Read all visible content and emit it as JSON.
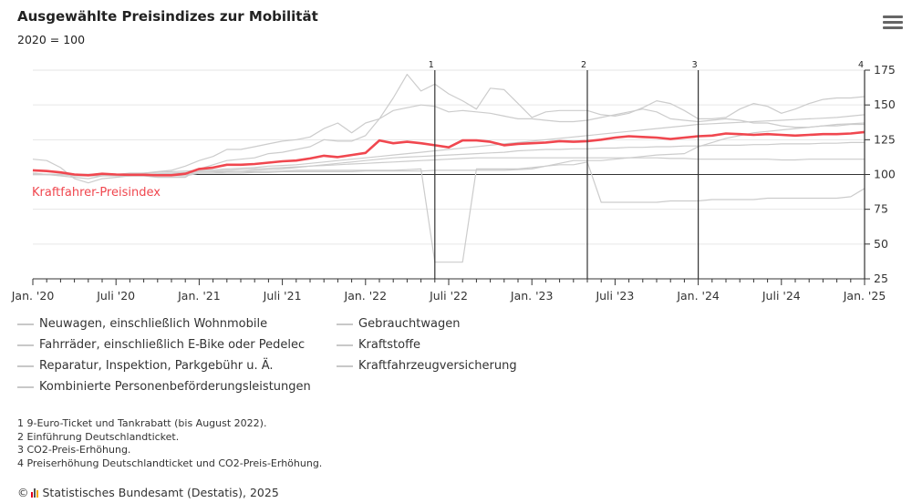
{
  "header": {
    "title": "Ausgewählte Preisindizes zur Mobilität",
    "subtitle": "2020 = 100"
  },
  "menu": {
    "icon": "hamburger-menu-icon"
  },
  "chart_data": {
    "type": "line",
    "ylim": [
      25,
      175
    ],
    "yticks": [
      "25",
      "50",
      "75",
      "100",
      "125",
      "150",
      "175"
    ],
    "xticks": [
      "Jan. '20",
      "Juli '20",
      "Jan. '21",
      "Juli '21",
      "Jan. '22",
      "Juli '22",
      "Jan. '23",
      "Juli '23",
      "Jan. '24",
      "Juli '24",
      "Jan. '25"
    ],
    "highlight_label": "Kraftfahrer-Preisindex",
    "highlight_color": "#f0474f",
    "other_color": "#cccccc",
    "markers": [
      {
        "label": "1",
        "month": 29
      },
      {
        "label": "2",
        "month": 40
      },
      {
        "label": "3",
        "month": 48
      },
      {
        "label": "4",
        "month": 60
      }
    ],
    "series": [
      {
        "name": "Kraftfahrer-Preisindex",
        "highlight": true,
        "values": [
          103,
          102.5,
          101.5,
          100,
          99.5,
          100.5,
          100,
          99.8,
          99.8,
          99.5,
          99.5,
          100.5,
          104,
          105,
          107,
          107,
          107.5,
          108.5,
          109.5,
          110,
          111.5,
          113.5,
          112.5,
          114,
          115.5,
          124.5,
          122.5,
          123.5,
          122.5,
          121,
          119.5,
          124.5,
          124.5,
          123.5,
          121,
          122,
          122.5,
          123,
          124,
          123.5,
          124,
          125,
          126.5,
          127.5,
          127,
          126.5,
          125.5,
          126.5,
          127.5,
          128,
          129.5,
          129,
          128.5,
          129,
          128.5,
          128,
          128.5,
          129,
          129,
          129.5,
          130.5
        ]
      },
      {
        "name": "Neuwagen, einschließlich Wohnmobile",
        "values": [
          100,
          100,
          100,
          100,
          100,
          100,
          99,
          99,
          99,
          99,
          99,
          99,
          101,
          101,
          102,
          102,
          103,
          103.5,
          104,
          105,
          106,
          107,
          108,
          109,
          110,
          111,
          112,
          112.5,
          113,
          113.5,
          114,
          114.5,
          115,
          115.5,
          116,
          117,
          117.5,
          118,
          118,
          118.5,
          118.5,
          119,
          119,
          119.5,
          119.5,
          120,
          120,
          120.5,
          120.5,
          121,
          121,
          121,
          121.5,
          121.5,
          122,
          122,
          122,
          122.5,
          122.5,
          123,
          123
        ]
      },
      {
        "name": "Gebrauchtwagen",
        "values": [
          101,
          100,
          99,
          98,
          97,
          99,
          100,
          101,
          101,
          102,
          103,
          106,
          110,
          113,
          118,
          118,
          120,
          122,
          124,
          125,
          127,
          133,
          137,
          130,
          137,
          140,
          146,
          148,
          150,
          149,
          145,
          146,
          145,
          144,
          142,
          140,
          140,
          139,
          138,
          138,
          139,
          141,
          143,
          145,
          147,
          145,
          140,
          139,
          138,
          139,
          140,
          139,
          137,
          137,
          135,
          134,
          134,
          135,
          135,
          136,
          136
        ]
      },
      {
        "name": "Fahrräder, einschließlich E-Bike oder Pedelec",
        "values": [
          100,
          100,
          100,
          100,
          100,
          100,
          100,
          100,
          100,
          100.5,
          101,
          101.5,
          102,
          102.5,
          103,
          103.5,
          104,
          104.5,
          105,
          105.5,
          106,
          106.5,
          107,
          107.5,
          108,
          108.5,
          109,
          109.5,
          110,
          110.5,
          111,
          111.5,
          112,
          112,
          112,
          112,
          112,
          112,
          112,
          112,
          112,
          112,
          112,
          112,
          112,
          112,
          111.5,
          111.5,
          111,
          111,
          111,
          111,
          111,
          111,
          110.5,
          110.5,
          111,
          111,
          111,
          111,
          111
        ]
      },
      {
        "name": "Kraftstoffe",
        "values": [
          111,
          110,
          105,
          97,
          94,
          97,
          98,
          99,
          99,
          98,
          98,
          98,
          104,
          107,
          110,
          111,
          112,
          115,
          116,
          118,
          120,
          125,
          124,
          124,
          128,
          140,
          155,
          172,
          160,
          165,
          158,
          153,
          147,
          162,
          161,
          151,
          141,
          145,
          146,
          146,
          146,
          143,
          142,
          144,
          148,
          153,
          151,
          146,
          140,
          140,
          141,
          147,
          151,
          149,
          144,
          147,
          151,
          154,
          155,
          155,
          156
        ]
      },
      {
        "name": "Reparatur, Inspektion, Parkgebühr u. Ä.",
        "values": [
          100,
          100,
          100,
          100,
          100,
          100,
          100,
          100.5,
          101,
          101.5,
          102,
          102.5,
          103,
          103.5,
          104,
          104.5,
          105,
          106,
          106.5,
          107,
          108,
          109,
          110,
          111,
          112,
          113,
          114,
          115,
          116,
          117,
          118,
          119,
          120,
          121,
          122,
          123,
          124,
          125,
          126,
          127,
          128,
          129,
          130,
          131,
          132,
          133,
          134,
          135,
          136,
          136.5,
          137,
          137.5,
          138,
          138.5,
          139,
          139.5,
          140,
          140.5,
          141,
          142,
          143
        ]
      },
      {
        "name": "Kraftfahrzeugversicherung",
        "values": [
          100,
          100,
          100,
          100,
          100,
          100,
          100,
          100,
          100,
          100,
          100,
          100,
          101,
          101,
          101,
          101,
          101.5,
          101.5,
          102,
          102,
          102,
          102,
          102,
          102,
          102.5,
          102.5,
          102.5,
          102.5,
          102.5,
          103,
          103,
          103,
          103,
          103,
          103,
          103.5,
          104,
          106,
          108,
          110,
          110,
          110,
          111,
          112,
          113,
          114,
          114.5,
          115,
          120,
          123,
          126,
          128,
          130,
          131,
          132,
          133,
          134,
          135,
          136,
          136.5,
          137
        ]
      },
      {
        "name": "Kombinierte Personenbeförderungsleistungen",
        "values": [
          101,
          100,
          100,
          99,
          99,
          99,
          99,
          99,
          99.5,
          100,
          100.5,
          101,
          102,
          102,
          102,
          102,
          102,
          102,
          102.5,
          103,
          103,
          103,
          103,
          103,
          103,
          103,
          103,
          103.5,
          104,
          37,
          37,
          37,
          104,
          104,
          104,
          104,
          105,
          106,
          107,
          107,
          109,
          80,
          80,
          80,
          80,
          80,
          81,
          81,
          81,
          82,
          82,
          82,
          82,
          83,
          83,
          83,
          83,
          83,
          83,
          84,
          90
        ]
      }
    ]
  },
  "legend": {
    "items": [
      "Neuwagen, einschließlich Wohnmobile",
      "Gebrauchtwagen",
      "Fahrräder, einschließlich E-Bike oder Pedelec",
      "Kraftstoffe",
      "Reparatur, Inspektion, Parkgebühr u. Ä.",
      "Kraftfahrzeugversicherung",
      "Kombinierte Personenbeförderungsleistungen"
    ]
  },
  "notes": [
    "1 9-Euro-Ticket und Tankrabatt (bis August 2022).",
    "2 Einführung Deutschlandticket.",
    "3 CO2-Preis-Erhöhung.",
    "4 Preiserhöhung Deutschlandticket und CO2-Preis-Erhöhung."
  ],
  "source": {
    "copyright": "©",
    "text": "Statistisches Bundesamt (Destatis), 2025",
    "logo_icon": "destatis-logo-icon"
  }
}
